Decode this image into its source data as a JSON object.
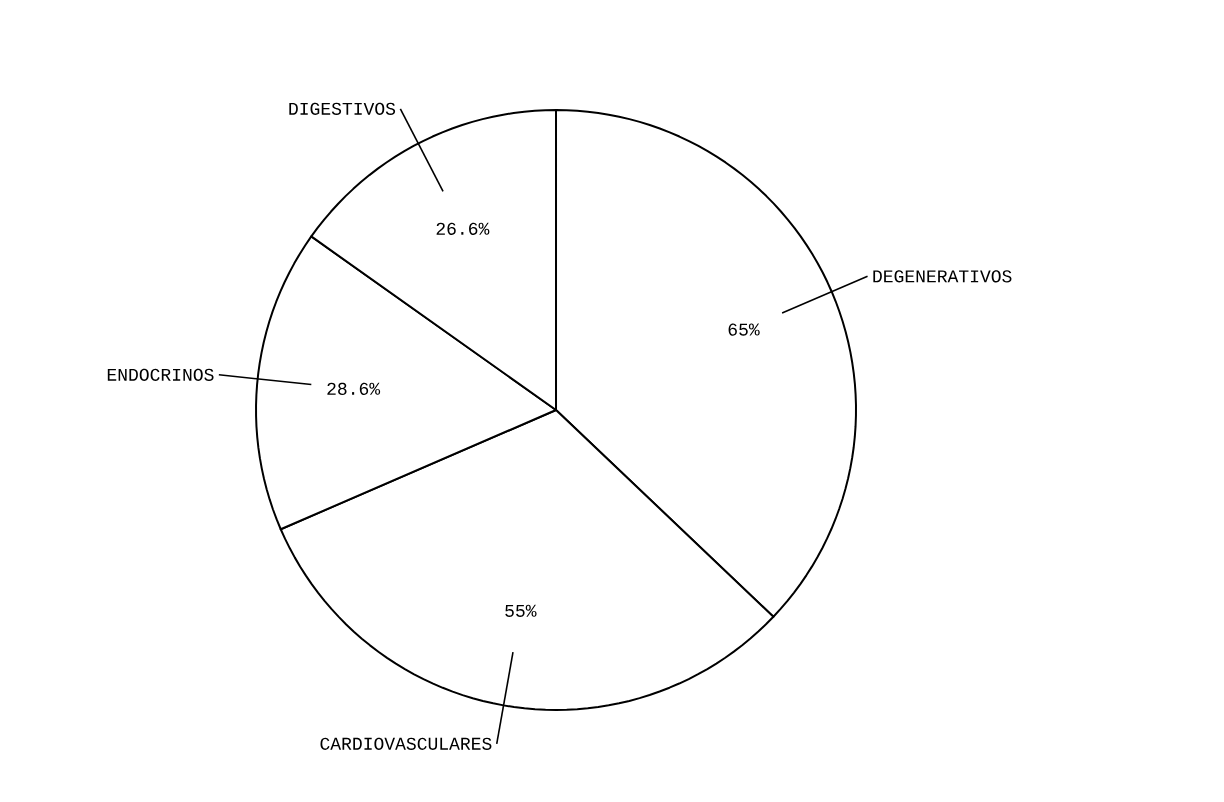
{
  "chart_data": {
    "type": "pie",
    "categories": [
      "DEGENERATIVOS",
      "CARDIOVASCULARES",
      "ENDOCRINOS",
      "DIGESTIVOS"
    ],
    "values": [
      65,
      55,
      28.6,
      26.6
    ],
    "value_labels": [
      "65%",
      "55%",
      "28.6%",
      "26.6%"
    ],
    "colors": [
      "#ffffff",
      "#ffffff",
      "#ffffff",
      "#ffffff"
    ]
  }
}
